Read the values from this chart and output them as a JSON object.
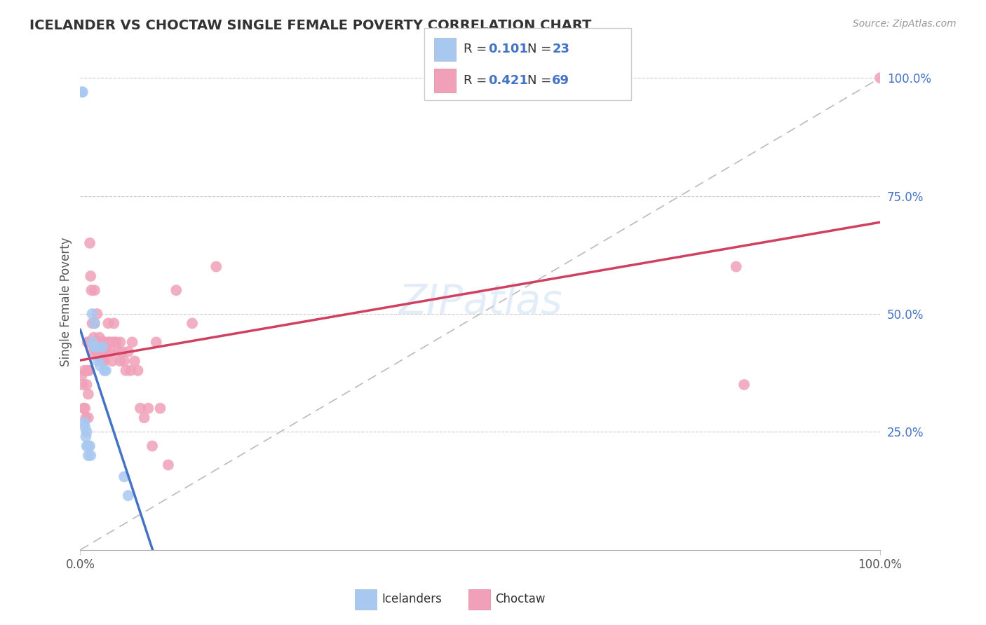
{
  "title": "ICELANDER VS CHOCTAW SINGLE FEMALE POVERTY CORRELATION CHART",
  "source": "Source: ZipAtlas.com",
  "ylabel": "Single Female Poverty",
  "legend_label1": "Icelanders",
  "legend_label2": "Choctaw",
  "R1": "0.101",
  "N1": "23",
  "R2": "0.421",
  "N2": "69",
  "ytick_labels": [
    "25.0%",
    "50.0%",
    "75.0%",
    "100.0%"
  ],
  "ytick_vals": [
    0.25,
    0.5,
    0.75,
    1.0
  ],
  "color_icelander": "#A8C8F0",
  "color_choctaw": "#F0A0B8",
  "color_line1": "#4472C4",
  "color_line2": "#D04060",
  "color_dashed": "#BBBBBB",
  "icelander_x": [
    0.002,
    0.003,
    0.005,
    0.006,
    0.007,
    0.008,
    0.008,
    0.01,
    0.01,
    0.012,
    0.013,
    0.015,
    0.015,
    0.018,
    0.018,
    0.02,
    0.022,
    0.025,
    0.028,
    0.03,
    0.032,
    0.055,
    0.06
  ],
  "icelander_y": [
    0.97,
    0.97,
    0.27,
    0.26,
    0.24,
    0.25,
    0.22,
    0.22,
    0.2,
    0.22,
    0.2,
    0.5,
    0.44,
    0.48,
    0.43,
    0.43,
    0.4,
    0.39,
    0.43,
    0.38,
    0.38,
    0.155,
    0.115
  ],
  "choctaw_x": [
    0.002,
    0.003,
    0.004,
    0.005,
    0.006,
    0.007,
    0.008,
    0.009,
    0.009,
    0.01,
    0.01,
    0.011,
    0.011,
    0.012,
    0.013,
    0.014,
    0.015,
    0.016,
    0.017,
    0.018,
    0.018,
    0.019,
    0.02,
    0.021,
    0.022,
    0.023,
    0.024,
    0.025,
    0.026,
    0.028,
    0.028,
    0.03,
    0.03,
    0.031,
    0.032,
    0.033,
    0.035,
    0.035,
    0.037,
    0.038,
    0.04,
    0.04,
    0.042,
    0.043,
    0.045,
    0.047,
    0.05,
    0.05,
    0.052,
    0.055,
    0.057,
    0.06,
    0.063,
    0.065,
    0.068,
    0.072,
    0.075,
    0.08,
    0.085,
    0.09,
    0.095,
    0.1,
    0.11,
    0.12,
    0.14,
    0.17,
    0.82,
    0.83,
    1.0
  ],
  "choctaw_y": [
    0.37,
    0.35,
    0.3,
    0.38,
    0.3,
    0.28,
    0.35,
    0.44,
    0.38,
    0.33,
    0.28,
    0.44,
    0.38,
    0.65,
    0.58,
    0.55,
    0.48,
    0.42,
    0.45,
    0.55,
    0.48,
    0.44,
    0.42,
    0.5,
    0.44,
    0.42,
    0.45,
    0.44,
    0.4,
    0.44,
    0.4,
    0.44,
    0.4,
    0.44,
    0.42,
    0.42,
    0.48,
    0.44,
    0.44,
    0.42,
    0.44,
    0.4,
    0.48,
    0.44,
    0.44,
    0.42,
    0.44,
    0.4,
    0.42,
    0.4,
    0.38,
    0.42,
    0.38,
    0.44,
    0.4,
    0.38,
    0.3,
    0.28,
    0.3,
    0.22,
    0.44,
    0.3,
    0.18,
    0.55,
    0.48,
    0.6,
    0.6,
    0.35,
    1.0
  ],
  "xlim": [
    0.0,
    1.0
  ],
  "ylim": [
    0.0,
    1.05
  ]
}
